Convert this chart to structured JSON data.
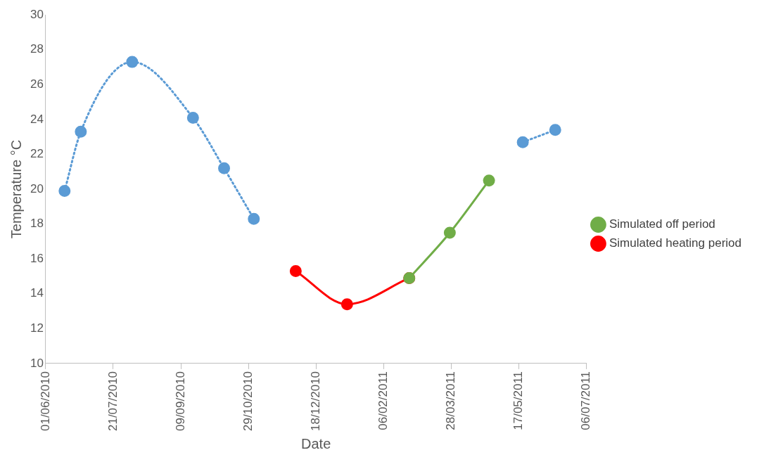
{
  "chart_data": {
    "type": "line",
    "xlabel": "Date",
    "ylabel": "Temperature °C",
    "xlim": [
      "2010-06-01",
      "2011-07-06"
    ],
    "xticks": [
      {
        "value": "2010-06-01",
        "label": "01/06/2010"
      },
      {
        "value": "2010-07-21",
        "label": "21/07/2010"
      },
      {
        "value": "2010-09-09",
        "label": "09/09/2010"
      },
      {
        "value": "2010-10-29",
        "label": "29/10/2010"
      },
      {
        "value": "2010-12-18",
        "label": "18/12/2010"
      },
      {
        "value": "2011-02-06",
        "label": "06/02/2011"
      },
      {
        "value": "2011-03-28",
        "label": "28/03/2011"
      },
      {
        "value": "2011-05-17",
        "label": "17/05/2011"
      },
      {
        "value": "2011-07-06",
        "label": "06/07/2011"
      }
    ],
    "ylim": [
      10,
      30
    ],
    "yticks": [
      10,
      12,
      14,
      16,
      18,
      20,
      22,
      24,
      26,
      28,
      30
    ],
    "grid": false,
    "legend": "right",
    "marker": "circle",
    "series": [
      {
        "color": "#5b9bd5",
        "line_style": "dotted",
        "x": [
          "2010-06-15",
          "2010-06-27",
          "2010-08-04",
          "2010-09-18",
          "2010-10-11",
          "2010-11-02",
          "2011-02-01",
          "2011-05-20",
          "2011-06-13"
        ],
        "values": [
          19.9,
          23.3,
          27.3,
          24.1,
          21.2,
          18.3,
          null,
          22.7,
          23.4
        ]
      },
      {
        "name": "Simulated heating period",
        "color": "#ff0000",
        "line_style": "solid",
        "x": [
          "2010-12-03",
          "2011-01-10",
          "2011-02-25"
        ],
        "values": [
          15.3,
          13.4,
          14.9
        ]
      },
      {
        "name": "Simulated off period",
        "color": "#70ad47",
        "line_style": "solid",
        "x": [
          "2011-02-25",
          "2011-03-27",
          "2011-04-25"
        ],
        "values": [
          14.9,
          17.5,
          20.5
        ]
      }
    ]
  }
}
